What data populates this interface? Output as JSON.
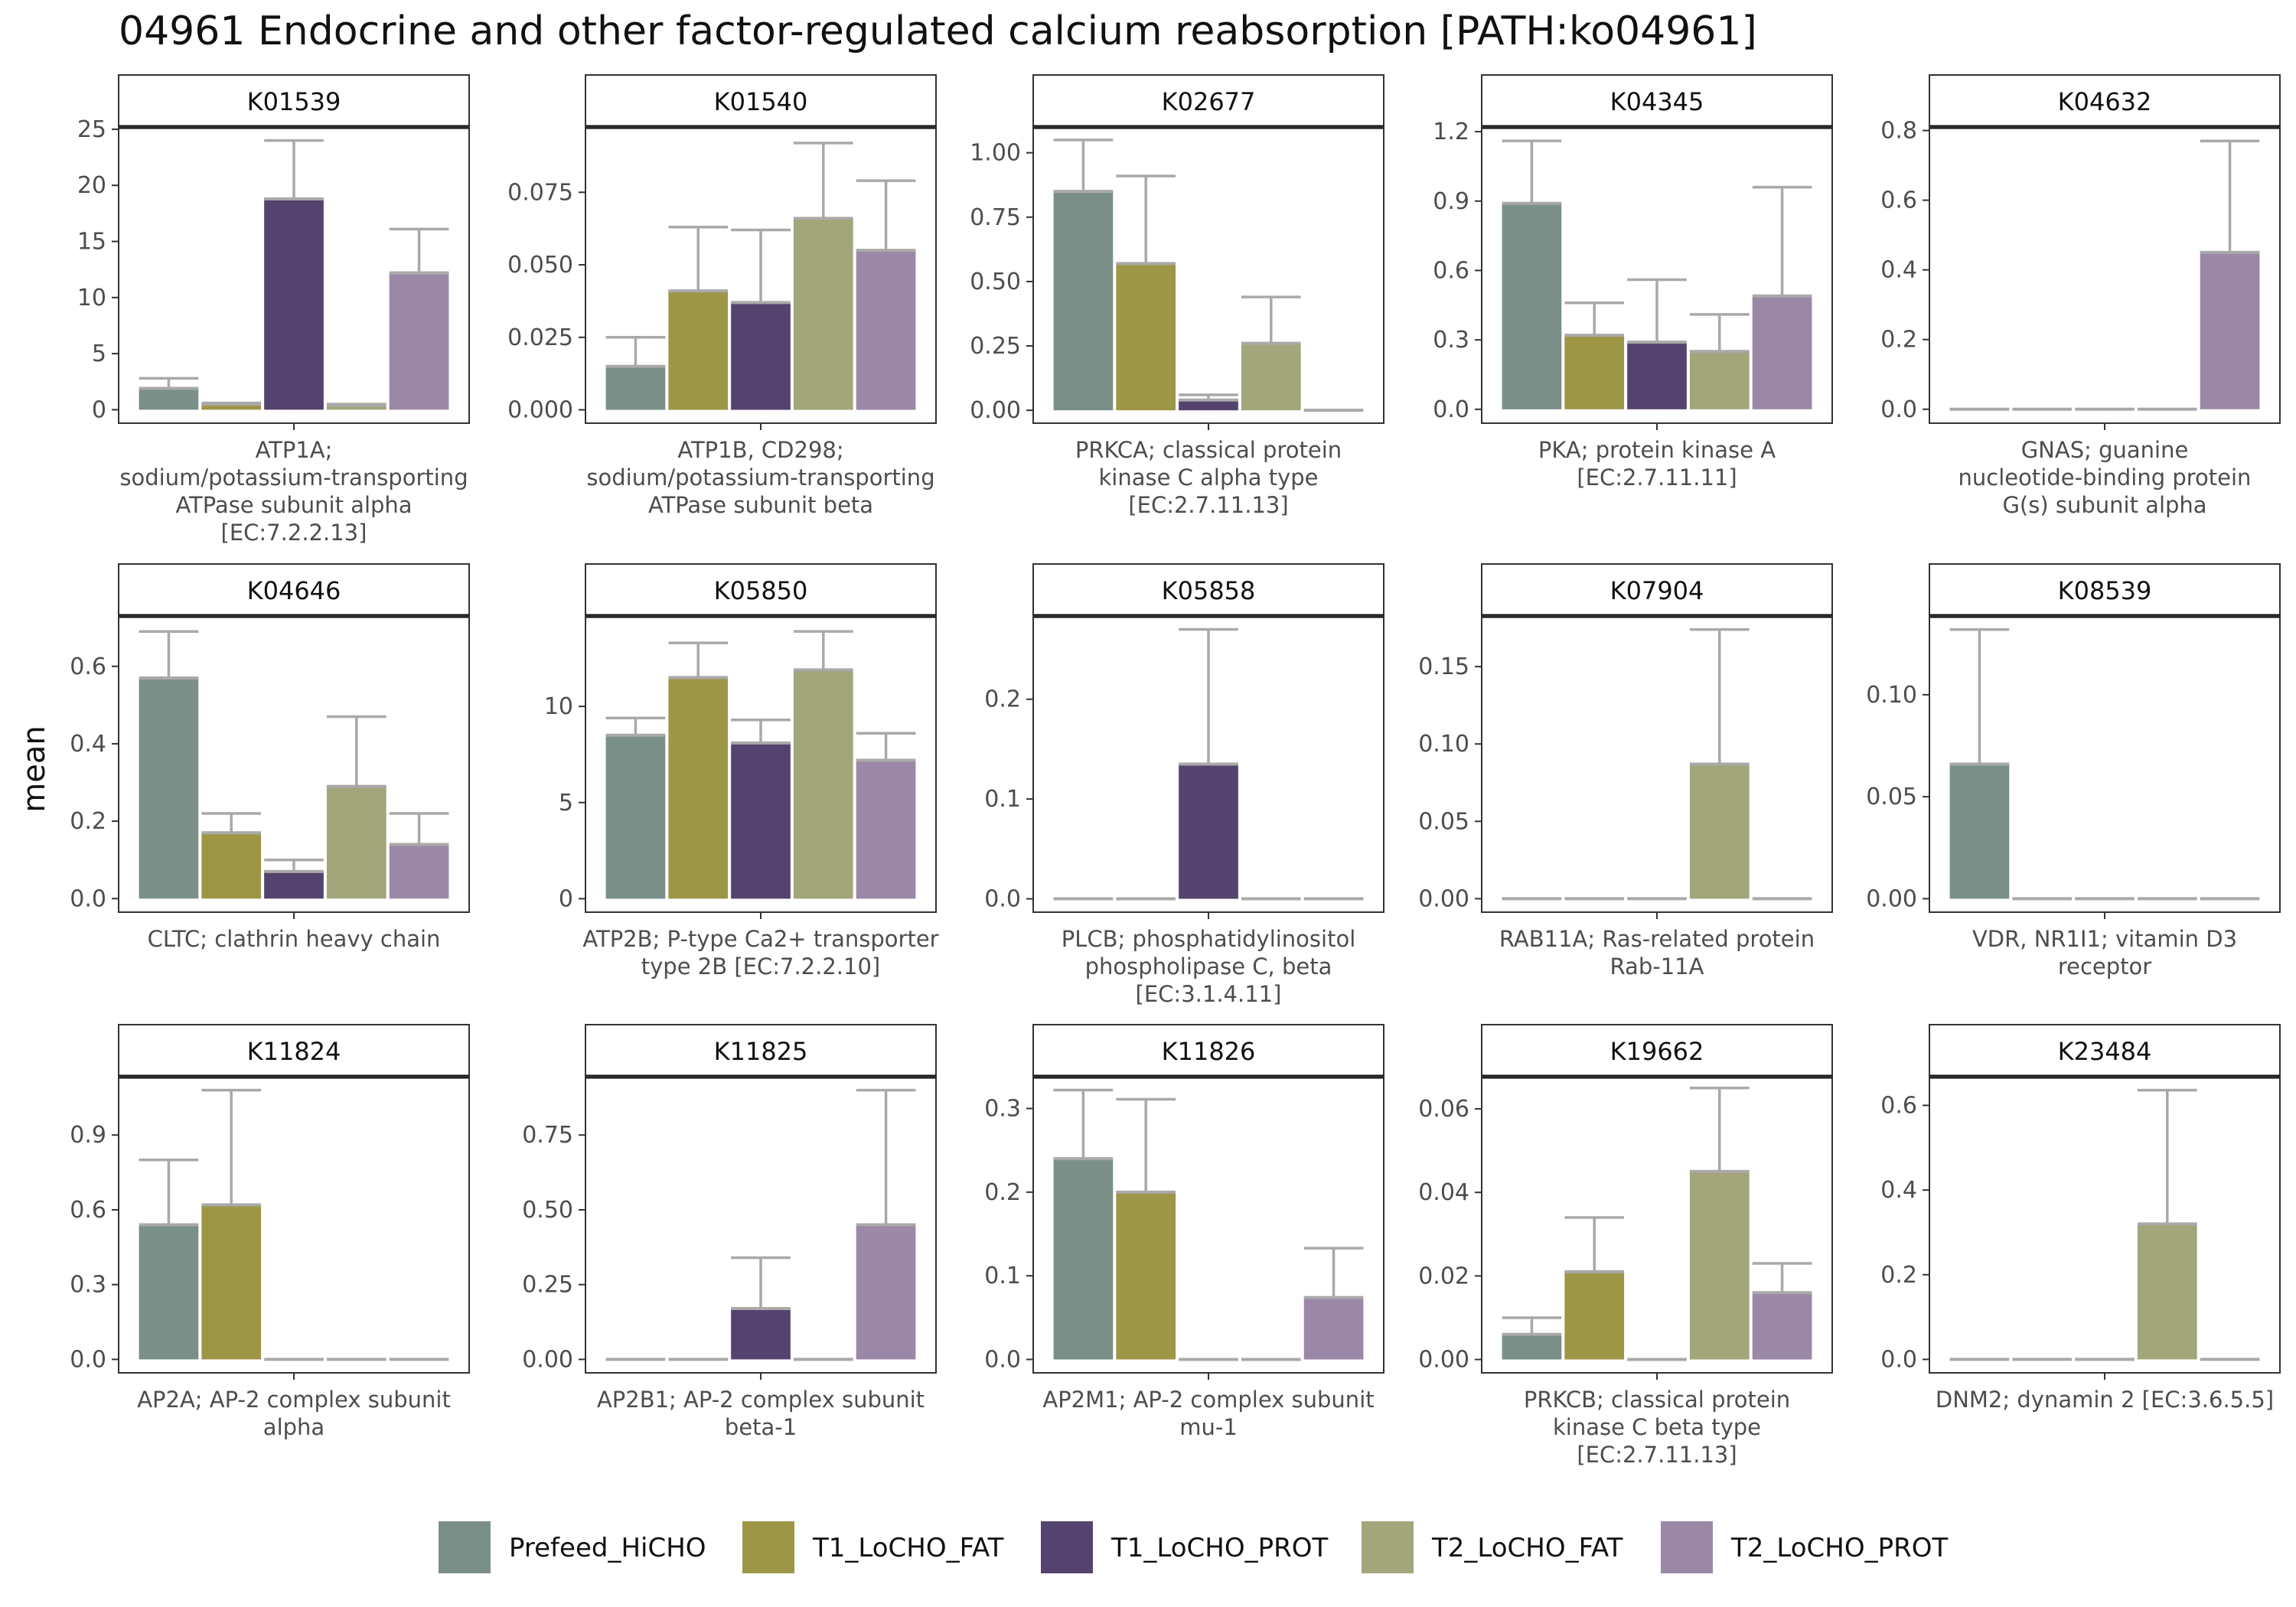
{
  "title": "04961 Endocrine and other factor-regulated calcium reabsorption [PATH:ko04961]",
  "ylabel": "mean",
  "legend": {
    "placement": "bottom",
    "entries": [
      {
        "name": "Prefeed_HiCHO",
        "color": "#7a8f88"
      },
      {
        "name": "T1_LoCHO_FAT",
        "color": "#9e9647"
      },
      {
        "name": "T1_LoCHO_PROT",
        "color": "#54436e"
      },
      {
        "name": "T2_LoCHO_FAT",
        "color": "#a3a57a"
      },
      {
        "name": "T2_LoCHO_PROT",
        "color": "#9b88a6"
      }
    ]
  },
  "chart_data": [
    {
      "type": "bar",
      "panel": "K01539",
      "category_label": [
        "ATP1A;",
        "sodium/potassium-transporting",
        "ATPase subunit alpha",
        "[EC:7.2.2.13]"
      ],
      "yticks": [
        0,
        5,
        10,
        15,
        20,
        25
      ],
      "tick_labels": [
        "0",
        "5",
        "10",
        "15",
        "20",
        "25"
      ],
      "ylim": [
        -1.2,
        25.2
      ],
      "values": [
        1.9,
        0.5,
        18.8,
        0.4,
        12.2
      ],
      "errors": [
        2.8,
        0.6,
        24.0,
        0.5,
        16.1
      ]
    },
    {
      "type": "bar",
      "panel": "K01540",
      "category_label": [
        "ATP1B, CD298;",
        "sodium/potassium-transporting",
        "ATPase subunit beta"
      ],
      "yticks": [
        0,
        0.025,
        0.05,
        0.075
      ],
      "tick_labels": [
        "0.000",
        "0.025",
        "0.050",
        "0.075"
      ],
      "ylim": [
        -0.0046,
        0.0975
      ],
      "values": [
        0.015,
        0.041,
        0.037,
        0.066,
        0.055
      ],
      "errors": [
        0.025,
        0.063,
        0.062,
        0.092,
        0.079
      ]
    },
    {
      "type": "bar",
      "panel": "K02677",
      "category_label": [
        "PRKCA; classical protein",
        "kinase C alpha type",
        "[EC:2.7.11.13]"
      ],
      "yticks": [
        0,
        0.25,
        0.5,
        0.75,
        1.0
      ],
      "tick_labels": [
        "0.00",
        "0.25",
        "0.50",
        "0.75",
        "1.00"
      ],
      "ylim": [
        -0.05,
        1.1
      ],
      "values": [
        0.85,
        0.57,
        0.04,
        0.26,
        0.0
      ],
      "errors": [
        1.05,
        0.91,
        0.06,
        0.44,
        0.0
      ]
    },
    {
      "type": "bar",
      "panel": "K04345",
      "category_label": [
        "PKA; protein kinase A",
        "[EC:2.7.11.11]"
      ],
      "yticks": [
        0,
        0.3,
        0.6,
        0.9,
        1.2
      ],
      "tick_labels": [
        "0.0",
        "0.3",
        "0.6",
        "0.9",
        "1.2"
      ],
      "ylim": [
        -0.06,
        1.22
      ],
      "values": [
        0.89,
        0.32,
        0.29,
        0.25,
        0.49
      ],
      "errors": [
        1.16,
        0.46,
        0.56,
        0.41,
        0.96
      ]
    },
    {
      "type": "bar",
      "panel": "K04632",
      "category_label": [
        "GNAS; guanine",
        "nucleotide-binding protein",
        "G(s) subunit alpha"
      ],
      "yticks": [
        0,
        0.2,
        0.4,
        0.6,
        0.8
      ],
      "tick_labels": [
        "0.0",
        "0.2",
        "0.4",
        "0.6",
        "0.8"
      ],
      "ylim": [
        -0.04,
        0.81
      ],
      "values": [
        0.0,
        0.0,
        0.0,
        0.0,
        0.45
      ],
      "errors": [
        0.0,
        0.0,
        0.0,
        0.0,
        0.77
      ]
    },
    {
      "type": "bar",
      "panel": "K04646",
      "category_label": [
        "CLTC; clathrin heavy chain"
      ],
      "yticks": [
        0,
        0.2,
        0.4,
        0.6
      ],
      "tick_labels": [
        "0.0",
        "0.2",
        "0.4",
        "0.6"
      ],
      "ylim": [
        -0.035,
        0.73
      ],
      "values": [
        0.57,
        0.17,
        0.07,
        0.29,
        0.14
      ],
      "errors": [
        0.69,
        0.22,
        0.1,
        0.47,
        0.22
      ]
    },
    {
      "type": "bar",
      "panel": "K05850",
      "category_label": [
        "ATP2B; P-type Ca2+ transporter",
        "type 2B [EC:7.2.2.10]"
      ],
      "yticks": [
        0,
        5,
        10
      ],
      "tick_labels": [
        "0",
        "5",
        "10"
      ],
      "ylim": [
        -0.7,
        14.7
      ],
      "values": [
        8.5,
        11.5,
        8.1,
        11.9,
        7.2
      ],
      "errors": [
        9.4,
        13.3,
        9.3,
        13.9,
        8.6
      ]
    },
    {
      "type": "bar",
      "panel": "K05858",
      "category_label": [
        "PLCB; phosphatidylinositol",
        "phospholipase C, beta",
        "[EC:3.1.4.11]"
      ],
      "yticks": [
        0,
        0.1,
        0.2
      ],
      "tick_labels": [
        "0.0",
        "0.1",
        "0.2"
      ],
      "ylim": [
        -0.0134,
        0.2834
      ],
      "values": [
        0.0,
        0.0,
        0.135,
        0.0,
        0.0
      ],
      "errors": [
        0.0,
        0.0,
        0.27,
        0.0,
        0.0
      ]
    },
    {
      "type": "bar",
      "panel": "K07904",
      "category_label": [
        "RAB11A; Ras-related protein",
        "Rab-11A"
      ],
      "yticks": [
        0,
        0.05,
        0.1,
        0.15
      ],
      "tick_labels": [
        "0.00",
        "0.05",
        "0.10",
        "0.15"
      ],
      "ylim": [
        -0.0087,
        0.1827
      ],
      "values": [
        0.0,
        0.0,
        0.0,
        0.087,
        0.0
      ],
      "errors": [
        0.0,
        0.0,
        0.0,
        0.174,
        0.0
      ]
    },
    {
      "type": "bar",
      "panel": "K08539",
      "category_label": [
        "VDR, NR1I1; vitamin D3",
        "receptor"
      ],
      "yticks": [
        0,
        0.05,
        0.1
      ],
      "tick_labels": [
        "0.00",
        "0.05",
        "0.10"
      ],
      "ylim": [
        -0.0066,
        0.1386
      ],
      "values": [
        0.066,
        0.0,
        0.0,
        0.0,
        0.0
      ],
      "errors": [
        0.132,
        0.0,
        0.0,
        0.0,
        0.0
      ]
    },
    {
      "type": "bar",
      "panel": "K11824",
      "category_label": [
        "AP2A; AP-2 complex subunit",
        "alpha"
      ],
      "yticks": [
        0,
        0.3,
        0.6,
        0.9
      ],
      "tick_labels": [
        "0.0",
        "0.3",
        "0.6",
        "0.9"
      ],
      "ylim": [
        -0.054,
        1.134
      ],
      "values": [
        0.54,
        0.62,
        0.0,
        0.0,
        0.0
      ],
      "errors": [
        0.8,
        1.08,
        0.0,
        0.0,
        0.0
      ]
    },
    {
      "type": "bar",
      "panel": "K11825",
      "category_label": [
        "AP2B1; AP-2 complex subunit",
        "beta-1"
      ],
      "yticks": [
        0,
        0.25,
        0.5,
        0.75
      ],
      "tick_labels": [
        "0.00",
        "0.25",
        "0.50",
        "0.75"
      ],
      "ylim": [
        -0.045,
        0.945
      ],
      "values": [
        0.0,
        0.0,
        0.17,
        0.0,
        0.45
      ],
      "errors": [
        0.0,
        0.0,
        0.34,
        0.0,
        0.9
      ]
    },
    {
      "type": "bar",
      "panel": "K11826",
      "category_label": [
        "AP2M1; AP-2 complex subunit",
        "mu-1"
      ],
      "yticks": [
        0,
        0.1,
        0.2,
        0.3
      ],
      "tick_labels": [
        "0.0",
        "0.1",
        "0.2",
        "0.3"
      ],
      "ylim": [
        -0.016,
        0.338
      ],
      "values": [
        0.24,
        0.2,
        0.0,
        0.0,
        0.074
      ],
      "errors": [
        0.322,
        0.311,
        0.0,
        0.0,
        0.133
      ]
    },
    {
      "type": "bar",
      "panel": "K19662",
      "category_label": [
        "PRKCB; classical protein",
        "kinase C beta type",
        "[EC:2.7.11.13]"
      ],
      "yticks": [
        0,
        0.02,
        0.04,
        0.06
      ],
      "tick_labels": [
        "0.00",
        "0.02",
        "0.04",
        "0.06"
      ],
      "ylim": [
        -0.0032,
        0.0677
      ],
      "values": [
        0.006,
        0.021,
        0.0,
        0.045,
        0.016
      ],
      "errors": [
        0.01,
        0.034,
        0.0,
        0.065,
        0.023
      ]
    },
    {
      "type": "bar",
      "panel": "K23484",
      "category_label": [
        "DNM2; dynamin 2 [EC:3.6.5.5]"
      ],
      "yticks": [
        0,
        0.2,
        0.4,
        0.6
      ],
      "tick_labels": [
        "0.0",
        "0.2",
        "0.4",
        "0.6"
      ],
      "ylim": [
        -0.0318,
        0.6678
      ],
      "values": [
        0.0,
        0.0,
        0.0,
        0.32,
        0.0
      ],
      "errors": [
        0.0,
        0.0,
        0.0,
        0.636,
        0.0
      ]
    }
  ]
}
